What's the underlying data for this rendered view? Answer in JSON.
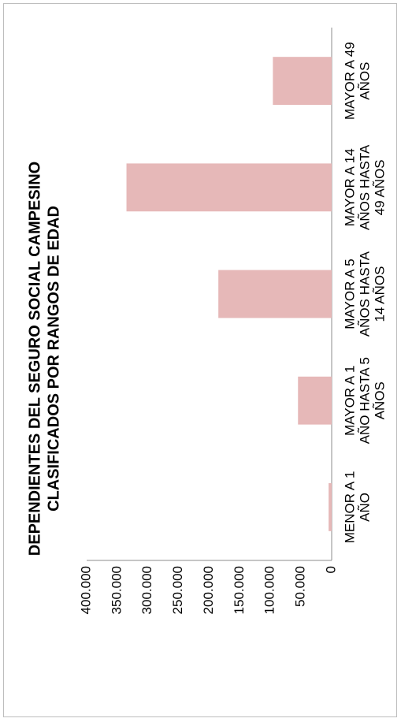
{
  "chart_data": {
    "type": "bar",
    "title": [
      "DEPENDIENTES DEL SEGURO SOCIAL CAMPESINO",
      "CLASIFICADOS POR RANGOS DE EDAD"
    ],
    "xlabel": "",
    "ylabel": "",
    "categories": [
      [
        "MENOR A 1",
        "AÑO"
      ],
      [
        "MAYOR A 1",
        "AÑO HASTA 5",
        "AÑOS"
      ],
      [
        "MAYOR A 5",
        "AÑOS HASTA",
        "14 AÑOS"
      ],
      [
        "MAYOR A 14",
        "AÑOS HASTA",
        "49 AÑOS"
      ],
      [
        "MAYOR A 49",
        "AÑOS"
      ]
    ],
    "values": [
      5000,
      55000,
      185000,
      335000,
      96000
    ],
    "ylim": [
      0,
      400000
    ],
    "yticks": [
      "0",
      "50.000",
      "100.000",
      "150.000",
      "200.000",
      "250.000",
      "300.000",
      "350.000",
      "400.000"
    ],
    "ytick_values": [
      0,
      50000,
      100000,
      150000,
      200000,
      250000,
      300000,
      350000,
      400000
    ],
    "bar_color": "#e6b8b8",
    "grid": false,
    "orientation": "rotated-90-ccw"
  }
}
